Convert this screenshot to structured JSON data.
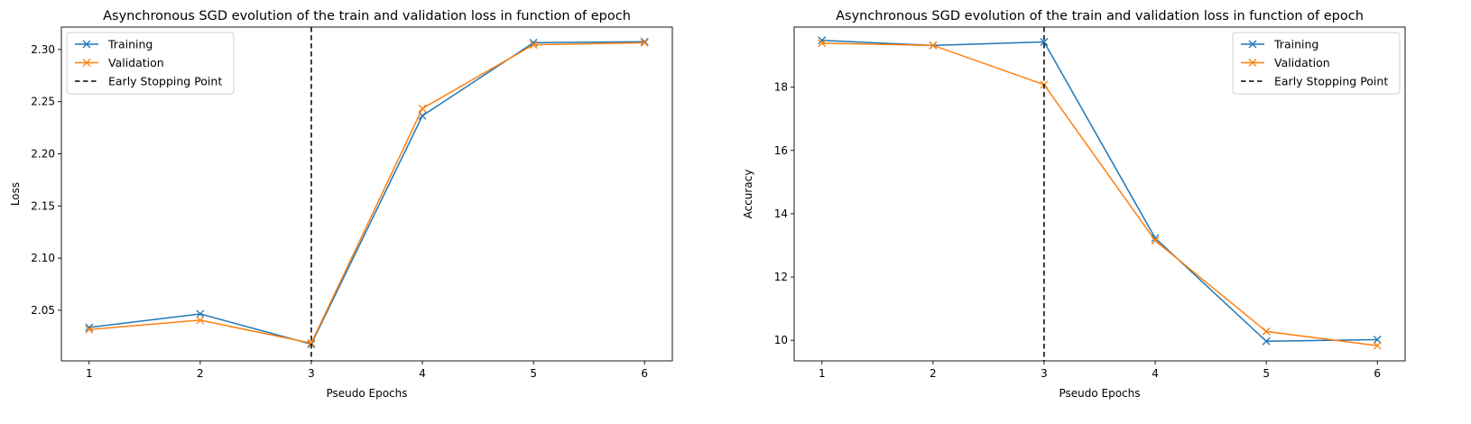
{
  "chart_data": [
    {
      "type": "line",
      "title": "Asynchronous SGD evolution of the train and validation loss in function of epoch",
      "xlabel": "Pseudo Epochs",
      "ylabel": "Loss",
      "x": [
        1,
        2,
        3,
        4,
        5,
        6
      ],
      "xticks": [
        "1",
        "2",
        "3",
        "4",
        "5",
        "6"
      ],
      "yticks": [
        "2.05",
        "2.10",
        "2.15",
        "2.20",
        "2.25",
        "2.30"
      ],
      "ylim": [
        2.0015,
        2.3215
      ],
      "xlim": [
        0.75,
        6.25
      ],
      "grid": false,
      "legend_position": "top-left",
      "series": [
        {
          "name": "Training",
          "color": "#1f77b4",
          "marker": "x",
          "values": [
            2.0335,
            2.0465,
            2.0175,
            2.2365,
            2.3065,
            2.3075
          ]
        },
        {
          "name": "Validation",
          "color": "#ff7f0e",
          "marker": "x",
          "values": [
            2.0315,
            2.0405,
            2.0185,
            2.2435,
            2.3045,
            2.3065
          ]
        }
      ],
      "vline": {
        "name": "Early Stopping Point",
        "x": 3,
        "color": "#000000",
        "style": "dashed"
      }
    },
    {
      "type": "line",
      "title": "Asynchronous SGD evolution of the train and validation loss in function of epoch",
      "xlabel": "Pseudo Epochs",
      "ylabel": "Accuracy",
      "x": [
        1,
        2,
        3,
        4,
        5,
        6
      ],
      "xticks": [
        "1",
        "2",
        "3",
        "4",
        "5",
        "6"
      ],
      "yticks": [
        "10",
        "12",
        "14",
        "16",
        "18"
      ],
      "ylim": [
        9.35,
        19.9
      ],
      "xlim": [
        0.75,
        6.25
      ],
      "grid": false,
      "legend_position": "top-right",
      "series": [
        {
          "name": "Training",
          "color": "#1f77b4",
          "marker": "x",
          "values": [
            19.48,
            19.32,
            19.43,
            13.23,
            9.97,
            10.02
          ]
        },
        {
          "name": "Validation",
          "color": "#ff7f0e",
          "marker": "x",
          "values": [
            19.39,
            19.32,
            18.08,
            13.15,
            10.28,
            9.83
          ]
        }
      ],
      "vline": {
        "name": "Early Stopping Point",
        "x": 3,
        "color": "#000000",
        "style": "dashed"
      }
    }
  ]
}
